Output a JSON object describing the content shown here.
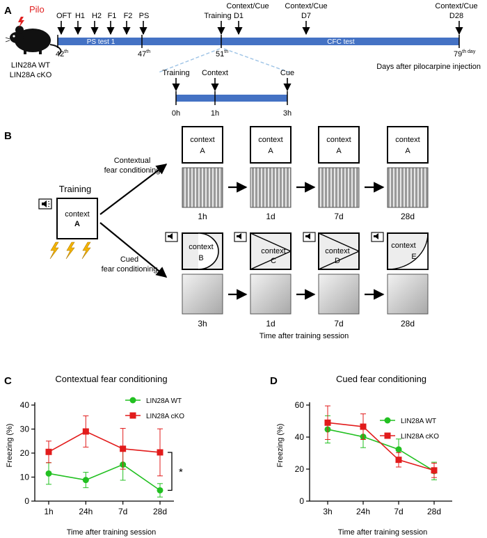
{
  "colors": {
    "timeline": "#4472C4",
    "dash": "#9DC3E6",
    "wt": "#22C021",
    "cko": "#E21B1B",
    "arena_fill": "#ededed"
  },
  "panel_a": {
    "label": "A",
    "pilo": "Pilo",
    "mouse_lines": [
      "LIN28A WT",
      "LIN28A cKO"
    ],
    "events": [
      "OFT",
      "H1",
      "H2",
      "F1",
      "F2",
      "PS",
      "Training",
      "Context/Cue",
      "D1",
      "Context/Cue",
      "D7",
      "Context/Cue",
      "D28"
    ],
    "bar_labels": [
      "PS test 1",
      "CFC test"
    ],
    "days": [
      "42",
      "47",
      "51",
      "79"
    ],
    "sup_th": "th",
    "sup_day": "th day",
    "caption": "Days after pilocarpine injection",
    "sub_events": [
      "Training",
      "Context",
      "Cue"
    ],
    "sub_ticks": [
      "0h",
      "1h",
      "3h"
    ]
  },
  "panel_b": {
    "label": "B",
    "training": "Training",
    "training_ctx": [
      "context",
      "A"
    ],
    "contextual_lines": [
      "Contextual",
      "fear conditioning"
    ],
    "cued_lines": [
      "Cued",
      "fear conditioning"
    ],
    "ctx_word": "context",
    "top_letters": [
      "A",
      "A",
      "A",
      "A"
    ],
    "top_times": [
      "1h",
      "1d",
      "7d",
      "28d"
    ],
    "bottom_letters": [
      "B",
      "C",
      "D",
      "E"
    ],
    "bottom_times": [
      "3h",
      "1d",
      "7d",
      "28d"
    ],
    "xlabel": "Time after training session"
  },
  "chart_data": [
    {
      "type": "line",
      "panel": "C",
      "title": "Contextual fear conditioning",
      "xlabel": "Time after training session",
      "ylabel": "Freezing (%)",
      "categories": [
        "1h",
        "24h",
        "7d",
        "28d"
      ],
      "ylim": [
        0,
        40
      ],
      "yticks": [
        0,
        10,
        20,
        30,
        40
      ],
      "legend": "top-right",
      "significance": "*",
      "series": [
        {
          "name": "LIN28A WT",
          "values": [
            11.5,
            8.8,
            15.2,
            4.5
          ],
          "err": [
            4.5,
            3.2,
            6.5,
            2.8
          ]
        },
        {
          "name": "LIN28A cKO",
          "values": [
            20.5,
            29.0,
            21.8,
            20.3
          ],
          "err": [
            4.5,
            6.5,
            8.5,
            9.8
          ]
        }
      ]
    },
    {
      "type": "line",
      "panel": "D",
      "title": "Cued fear conditioning",
      "xlabel": "Time after training session",
      "ylabel": "Freezing (%)",
      "categories": [
        "3h",
        "24h",
        "7d",
        "28d"
      ],
      "ylim": [
        0,
        60
      ],
      "yticks": [
        0,
        20,
        40,
        60
      ],
      "legend": "top-right",
      "series": [
        {
          "name": "LIN28A WT",
          "values": [
            44.8,
            40.2,
            32.3,
            18.8
          ],
          "err": [
            8.5,
            6.8,
            6.5,
            5.5
          ]
        },
        {
          "name": "LIN28A cKO",
          "values": [
            49.0,
            46.5,
            25.8,
            19.2
          ],
          "err": [
            10.5,
            8.0,
            4.5,
            4.5
          ]
        }
      ]
    }
  ]
}
